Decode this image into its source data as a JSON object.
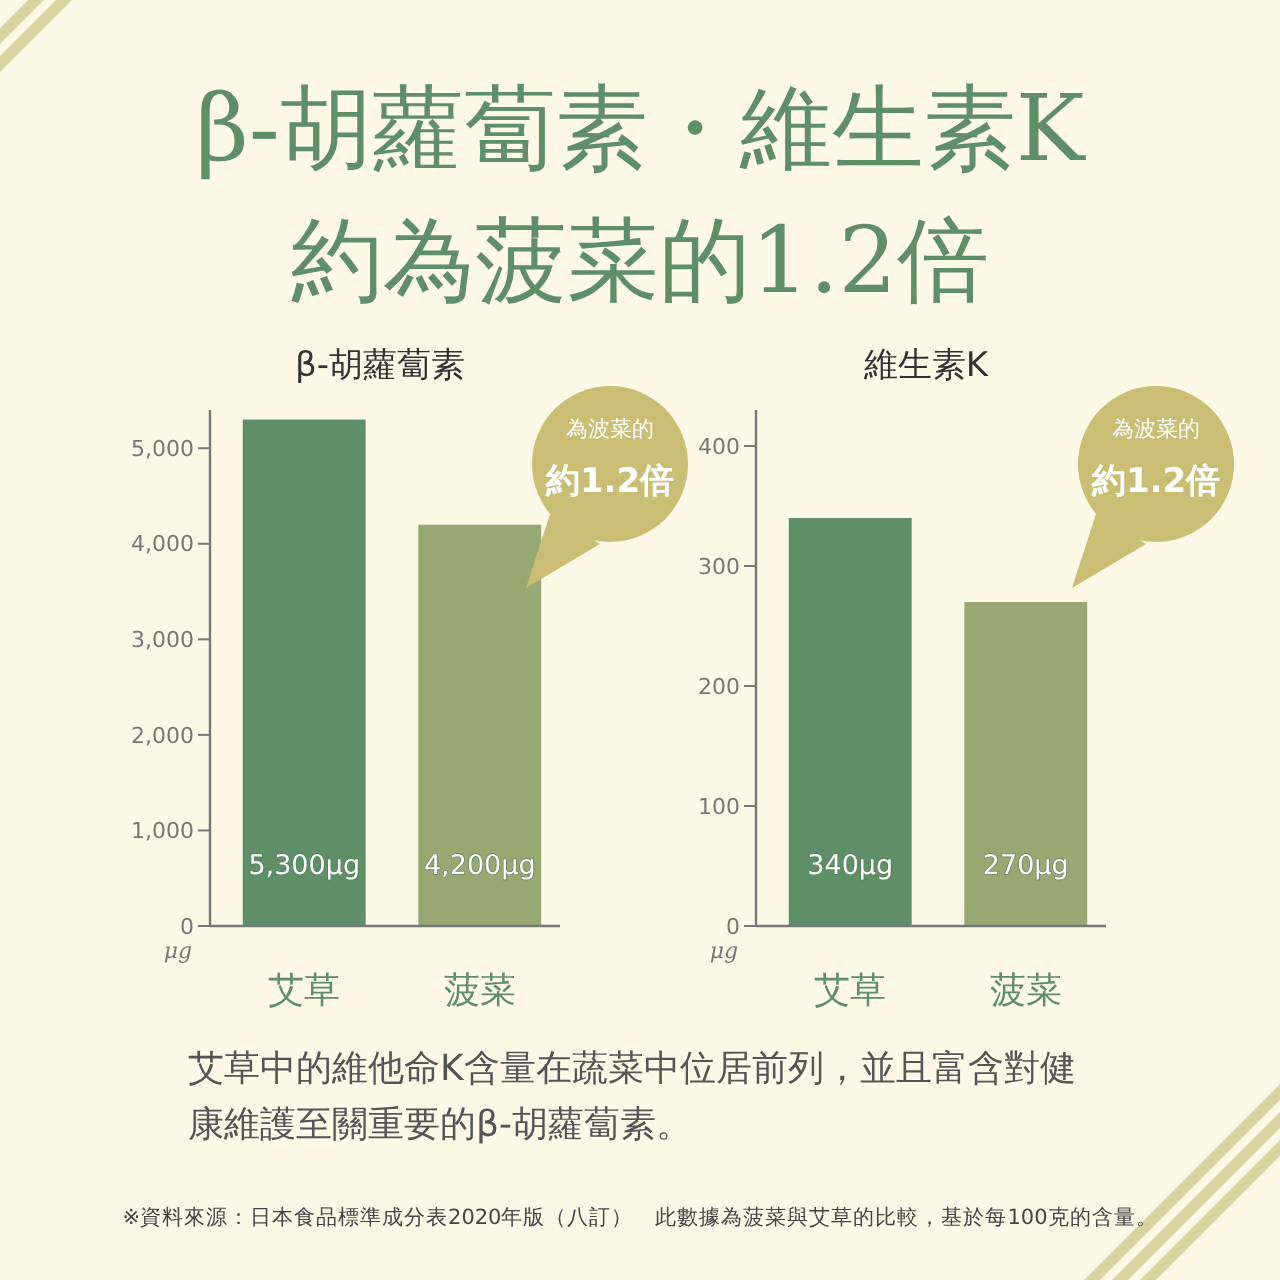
{
  "chart_data": [
    {
      "type": "other",
      "title": "β-胡蘿蔔素・維生素K\n約為菠菜的1.2倍",
      "annotations": [
        "艾草中的維他命K含量在蔬菜中位居前列，並且富含對健康維護至關重要的β-胡蘿蔔素。",
        "※資料來源：日本食品標準成分表2020年版（八訂）　此數據為菠菜與艾草的比較，基於每100克的含量。"
      ]
    },
    {
      "type": "bar",
      "title": "β-胡蘿蔔素",
      "ylabel": "μg",
      "categories": [
        "艾草",
        "菠菜"
      ],
      "values": [
        5300,
        4200
      ],
      "colors": [
        "#5e8f66",
        "#98a872"
      ],
      "value_labels": [
        "5,300μg",
        "4,200μg"
      ],
      "ylim": [
        0,
        5400
      ],
      "yticks": [
        0,
        {
          "value": 1000,
          "label": "1,000"
        },
        {
          "value": 2000,
          "label": "2,000"
        },
        {
          "value": 3000,
          "label": "3,000"
        },
        {
          "value": 4000,
          "label": "4,000"
        },
        {
          "value": 5000,
          "label": "5,000"
        }
      ],
      "annotations": [
        "為波菜的",
        "約1.2倍"
      ]
    },
    {
      "type": "bar",
      "title": "維生素K",
      "ylabel": "μg",
      "categories": [
        "艾草",
        "菠菜"
      ],
      "values": [
        340,
        270
      ],
      "colors": [
        "#5e8f66",
        "#98a872"
      ],
      "value_labels": [
        "340μg",
        "270μg"
      ],
      "ylim": [
        0,
        430
      ],
      "yticks": [
        0,
        100,
        200,
        300,
        400
      ],
      "annotations": [
        "為波菜的",
        "約1.2倍"
      ]
    }
  ]
}
